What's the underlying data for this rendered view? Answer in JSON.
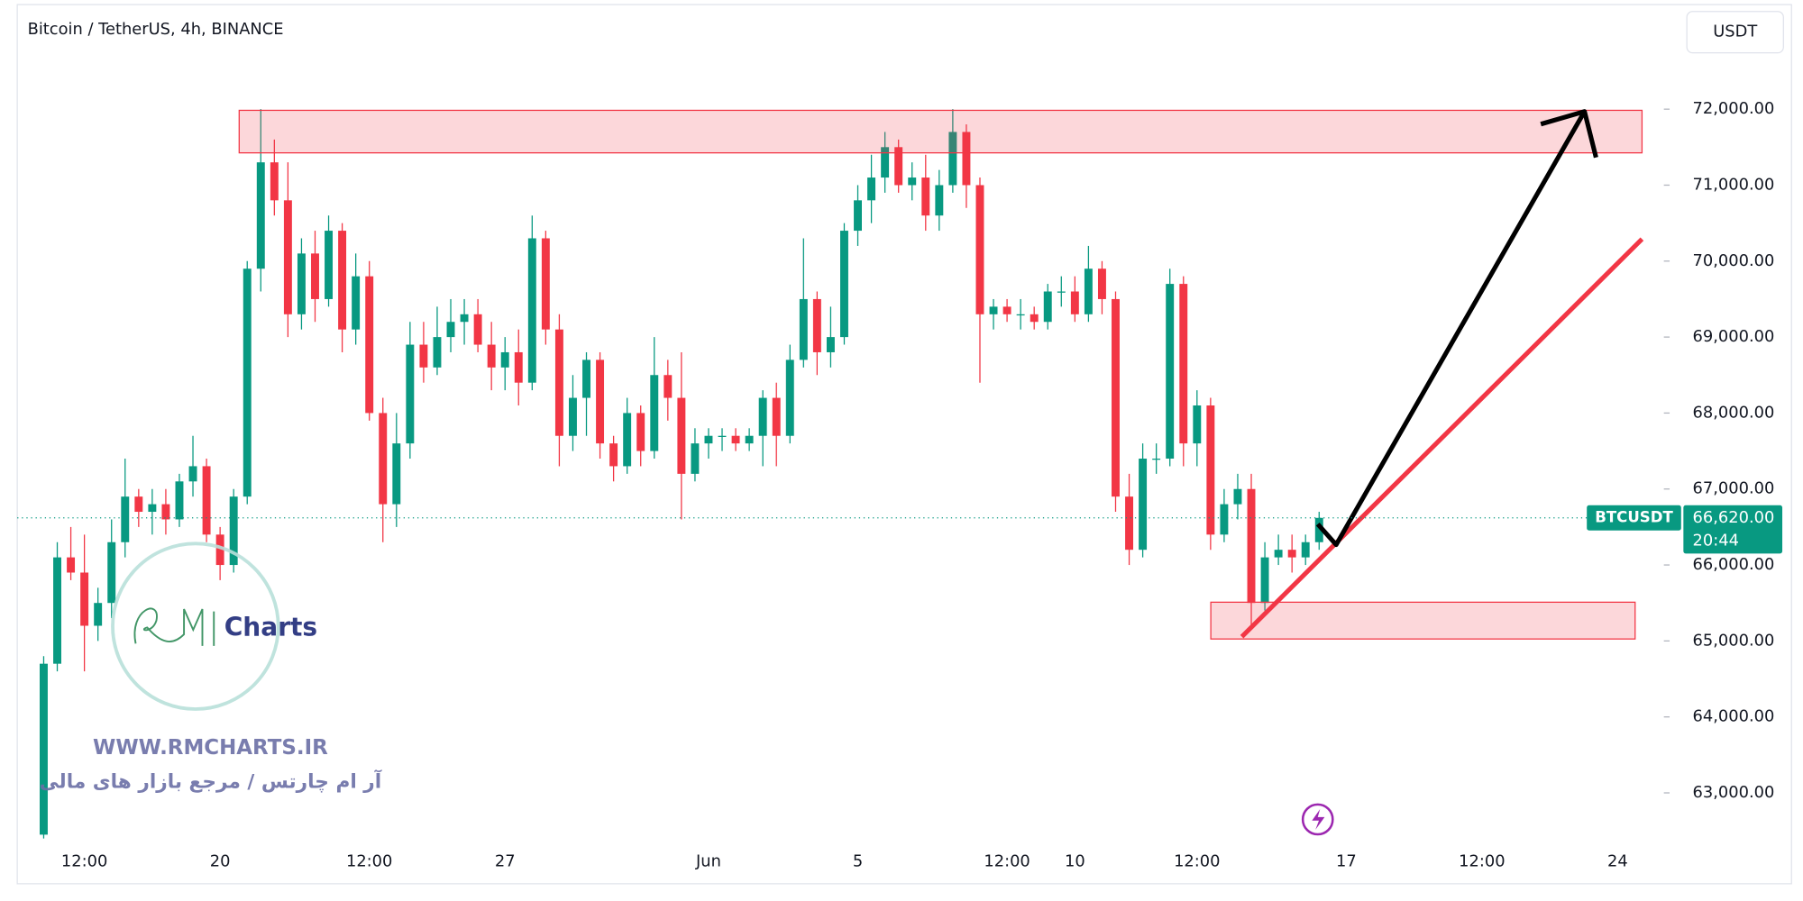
{
  "header": {
    "title": "Bitcoin / TetherUS, 4h, BINANCE",
    "currency_button": "USDT"
  },
  "watermark": {
    "logo_text": "Charts",
    "url": "WWW.RMCHARTS.IR",
    "tagline": "آر ام چارتس / مرجع بازار های مالی"
  },
  "chart_data": {
    "type": "candlestick",
    "categories": [
      null,
      null,
      null,
      "12:00",
      null,
      null,
      null,
      null,
      null,
      null,
      null,
      null,
      null,
      "20",
      null,
      null,
      null,
      null,
      null,
      null,
      null,
      null,
      null,
      null,
      "12:00",
      null,
      null,
      null,
      null,
      null,
      null,
      null,
      null,
      null,
      "27",
      null,
      null,
      null,
      null,
      null,
      null,
      null,
      null,
      null,
      null,
      null,
      null,
      null,
      null,
      "Jun",
      null,
      null,
      null,
      null,
      null,
      null,
      null,
      null,
      null,
      null,
      "5",
      null,
      null,
      null,
      null,
      null,
      null,
      null,
      null,
      null,
      null,
      "12:00",
      null,
      null,
      null,
      null,
      "10",
      null,
      null,
      null,
      null,
      null,
      null,
      null,
      null,
      "12:00",
      null,
      null,
      null,
      null,
      null,
      null,
      null,
      null,
      null,
      null,
      "17",
      null,
      null,
      null,
      null,
      null,
      null,
      null,
      null,
      null,
      "12:00",
      null,
      null,
      null,
      null,
      null,
      null,
      null,
      null,
      null,
      "24",
      null,
      null
    ],
    "series": [
      {
        "name": "BTCUSDT",
        "up_color": "#089981",
        "down_color": "#f23645",
        "open": [
          62450,
          64700,
          66100,
          65900,
          65200,
          65500,
          66300,
          66900,
          66700,
          66800,
          66600,
          67100,
          67300,
          66400,
          66000,
          66900,
          69900,
          71300,
          70800,
          69300,
          70100,
          69500,
          70400,
          69100,
          69800,
          68000,
          66800,
          67600,
          68900,
          68600,
          69000,
          69200,
          69300,
          68900,
          68600,
          68800,
          68400,
          70300,
          69100,
          67700,
          68200,
          68700,
          67600,
          67300,
          68000,
          67500,
          68500,
          68200,
          67200,
          67600,
          67700,
          67700,
          67600,
          67700,
          68200,
          67700,
          68700,
          69500,
          68800,
          69000,
          70400,
          70800,
          71100,
          71500,
          71000,
          71100,
          70600,
          71000,
          71700,
          71000,
          69300,
          69400,
          69300,
          69300,
          69200,
          69600,
          69600,
          69300,
          69900,
          69500,
          66900,
          66200,
          67400,
          67400,
          69700,
          67600,
          68100,
          66400,
          66800,
          67000,
          65500,
          66100,
          66200,
          66100,
          66300,
          null,
          null,
          null,
          null,
          null,
          null,
          null,
          null,
          null,
          null,
          null,
          null,
          null,
          null,
          null,
          null,
          null,
          null,
          null,
          null,
          null,
          null,
          null,
          null
        ],
        "high": [
          64800,
          66300,
          66500,
          66400,
          65700,
          66600,
          67400,
          67000,
          67000,
          67000,
          67200,
          67700,
          67400,
          66500,
          67000,
          70000,
          72000,
          71600,
          71300,
          70300,
          70400,
          70600,
          70500,
          70100,
          70000,
          68200,
          68000,
          69200,
          69200,
          69400,
          69500,
          69500,
          69500,
          69200,
          69000,
          69100,
          70600,
          70400,
          69300,
          68500,
          68800,
          68800,
          67700,
          68200,
          68100,
          69000,
          68700,
          68800,
          67800,
          67800,
          67800,
          67800,
          67800,
          68300,
          68400,
          68900,
          70300,
          69600,
          69400,
          70500,
          71000,
          71400,
          71700,
          71600,
          71300,
          71400,
          71200,
          72000,
          71800,
          71100,
          69500,
          69500,
          69500,
          69400,
          69700,
          69800,
          69800,
          70200,
          70000,
          69600,
          67200,
          67600,
          67600,
          69900,
          69800,
          68300,
          68200,
          67000,
          67200,
          67200,
          66300,
          66400,
          66400,
          66400,
          66700,
          null,
          null,
          null,
          null,
          null,
          null,
          null,
          null,
          null,
          null,
          null,
          null,
          null,
          null,
          null,
          null,
          null,
          null,
          null,
          null,
          null,
          null,
          null,
          null
        ],
        "low": [
          62400,
          64600,
          65800,
          64600,
          65000,
          65300,
          66100,
          66500,
          66400,
          66400,
          66500,
          66900,
          66300,
          65800,
          65900,
          66800,
          69600,
          70600,
          69000,
          69100,
          69200,
          69400,
          68800,
          68900,
          67900,
          66300,
          66500,
          67400,
          68400,
          68500,
          68800,
          68900,
          68800,
          68300,
          68300,
          68100,
          68300,
          68900,
          67300,
          67500,
          67700,
          67400,
          67100,
          67200,
          67300,
          67400,
          67900,
          66600,
          67100,
          67400,
          67500,
          67500,
          67500,
          67300,
          67300,
          67600,
          68600,
          68500,
          68600,
          68900,
          70200,
          70500,
          70900,
          70900,
          70800,
          70400,
          70400,
          70900,
          70700,
          68400,
          69100,
          69200,
          69100,
          69100,
          69100,
          69400,
          69200,
          69200,
          69300,
          66700,
          66000,
          66100,
          67200,
          67300,
          67300,
          67300,
          66200,
          66300,
          66600,
          65200,
          65400,
          66000,
          65900,
          66000,
          66200,
          null,
          null,
          null,
          null,
          null,
          null,
          null,
          null,
          null,
          null,
          null,
          null,
          null,
          null,
          null,
          null,
          null,
          null,
          null,
          null,
          null,
          null,
          null,
          null
        ],
        "close": [
          64700,
          66100,
          65900,
          65200,
          65500,
          66300,
          66900,
          66700,
          66800,
          66600,
          67100,
          67300,
          66400,
          66000,
          66900,
          69900,
          71300,
          70800,
          69300,
          70100,
          69500,
          70400,
          69100,
          69800,
          68000,
          66800,
          67600,
          68900,
          68600,
          69000,
          69200,
          69300,
          68900,
          68600,
          68800,
          68400,
          70300,
          69100,
          67700,
          68200,
          68700,
          67600,
          67300,
          68000,
          67500,
          68500,
          68200,
          67200,
          67600,
          67700,
          67700,
          67600,
          67700,
          68200,
          67700,
          68700,
          69500,
          68800,
          69000,
          70400,
          70800,
          71100,
          71500,
          71000,
          71100,
          70600,
          71000,
          71700,
          71000,
          69300,
          69400,
          69300,
          69300,
          69200,
          69600,
          69600,
          69300,
          69900,
          69500,
          66900,
          66200,
          67400,
          67400,
          69700,
          67600,
          68100,
          66400,
          66800,
          67000,
          65500,
          66100,
          66200,
          66100,
          66300,
          66620,
          null,
          null,
          null,
          null,
          null,
          null,
          null,
          null,
          null,
          null,
          null,
          null,
          null,
          null,
          null,
          null,
          null,
          null,
          null,
          null,
          null,
          null,
          null,
          null
        ]
      }
    ],
    "ylim": [
      62318,
      73437
    ],
    "yticks": [
      {
        "value": 63000,
        "label": "63,000.00"
      },
      {
        "value": 64000,
        "label": "64,000.00"
      },
      {
        "value": 65000,
        "label": "65,000.00"
      },
      {
        "value": 66000,
        "label": "66,000.00"
      },
      {
        "value": 67000,
        "label": "67,000.00"
      },
      {
        "value": 68000,
        "label": "68,000.00"
      },
      {
        "value": 69000,
        "label": "69,000.00"
      },
      {
        "value": 70000,
        "label": "70,000.00"
      },
      {
        "value": 71000,
        "label": "71,000.00"
      },
      {
        "value": 72000,
        "label": "72,000.00"
      }
    ],
    "grid": false,
    "price_tag": {
      "value": 66620,
      "label": "66,620.00",
      "color": "#089981"
    },
    "countdown": "20:44"
  }
}
